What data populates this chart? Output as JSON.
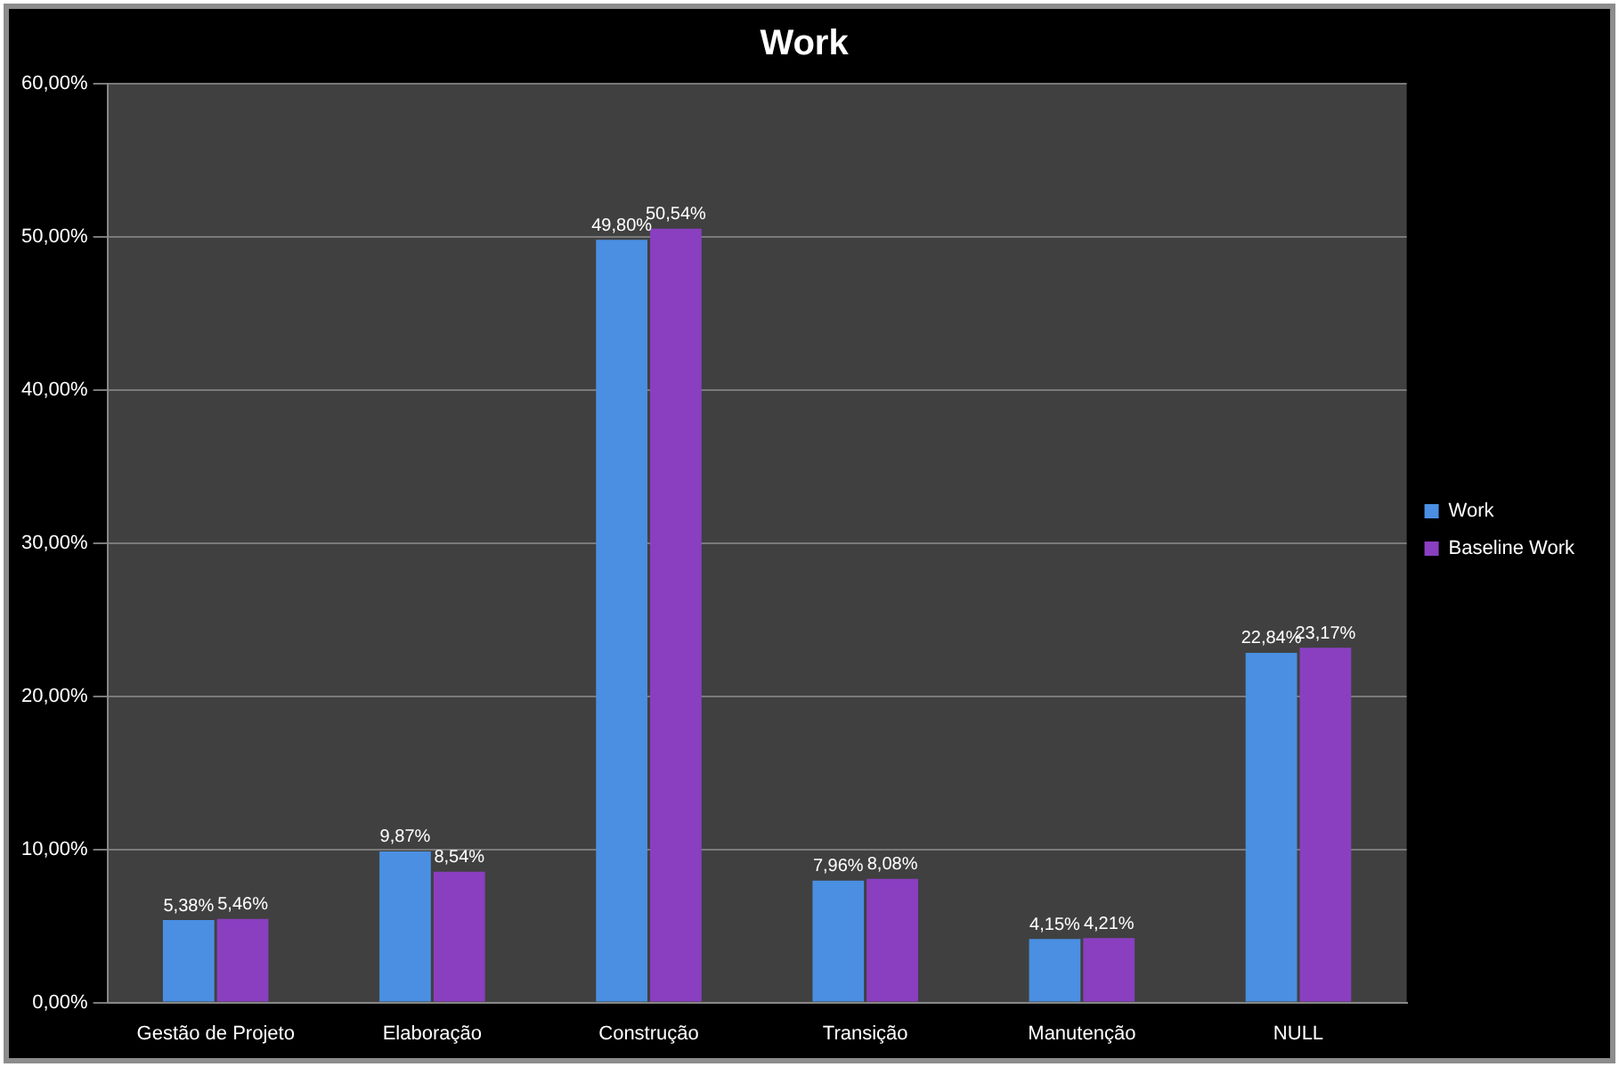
{
  "chart_data": {
    "type": "bar",
    "title": "Work",
    "categories": [
      "Gestão de Projeto",
      "Elaboração",
      "Construção",
      "Transição",
      "Manutenção",
      "NULL"
    ],
    "series": [
      {
        "name": "Work",
        "color": "#4a8fe2",
        "values": [
          5.38,
          9.87,
          49.8,
          7.96,
          4.15,
          22.84
        ],
        "value_labels": [
          "5,38%",
          "9,87%",
          "49,80%",
          "7,96%",
          "4,15%",
          "22,84%"
        ]
      },
      {
        "name": "Baseline Work",
        "color": "#8a3fc0",
        "values": [
          5.46,
          8.54,
          50.54,
          8.08,
          4.21,
          23.17
        ],
        "value_labels": [
          "5,46%",
          "8,54%",
          "50,54%",
          "8,08%",
          "4,21%",
          "23,17%"
        ]
      }
    ],
    "ylim": [
      0,
      60
    ],
    "yticks": [
      {
        "value": 0,
        "label": "0,00%"
      },
      {
        "value": 10,
        "label": "10,00%"
      },
      {
        "value": 20,
        "label": "20,00%"
      },
      {
        "value": 30,
        "label": "30,00%"
      },
      {
        "value": 40,
        "label": "40,00%"
      },
      {
        "value": 50,
        "label": "50,00%"
      },
      {
        "value": 60,
        "label": "60,00%"
      }
    ],
    "grid": "y",
    "legend": "right"
  }
}
